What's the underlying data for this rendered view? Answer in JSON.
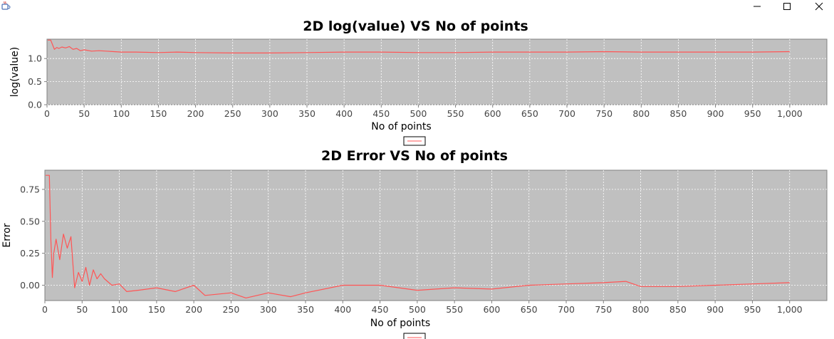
{
  "window": {
    "app_icon": "java-cup-icon",
    "controls": [
      "minimize-icon",
      "maximize-icon",
      "close-icon"
    ]
  },
  "colors": {
    "plot_background": "#c0c0c0",
    "series_line": "#ff5555",
    "gridline": "#ffffff"
  },
  "chart_data": [
    {
      "type": "line",
      "title": "2D log(value) VS No of points",
      "xlabel": "No of points",
      "ylabel": "log(value)",
      "xlim": [
        0,
        1050
      ],
      "ylim": [
        0,
        1.42
      ],
      "xticks": [
        0,
        50,
        100,
        150,
        200,
        250,
        300,
        350,
        400,
        450,
        500,
        550,
        600,
        650,
        700,
        750,
        800,
        850,
        900,
        950,
        1000
      ],
      "xtick_labels": [
        "0",
        "50",
        "100",
        "150",
        "200",
        "250",
        "300",
        "350",
        "400",
        "450",
        "500",
        "550",
        "600",
        "650",
        "700",
        "750",
        "800",
        "850",
        "900",
        "950",
        "1,000"
      ],
      "yticks": [
        0,
        0.5,
        1.0
      ],
      "ytick_labels": [
        "0.0",
        "0.5",
        "1.0"
      ],
      "grid": true,
      "legend": "bottom",
      "series": [
        {
          "name": "",
          "x": [
            1,
            5,
            8,
            10,
            13,
            16,
            20,
            25,
            30,
            35,
            40,
            45,
            50,
            60,
            70,
            80,
            90,
            100,
            120,
            150,
            175,
            200,
            250,
            300,
            350,
            400,
            450,
            500,
            550,
            600,
            650,
            700,
            750,
            800,
            850,
            900,
            950,
            1000
          ],
          "y": [
            1.4,
            1.4,
            1.28,
            1.2,
            1.24,
            1.22,
            1.25,
            1.23,
            1.26,
            1.2,
            1.22,
            1.17,
            1.19,
            1.16,
            1.17,
            1.16,
            1.15,
            1.14,
            1.14,
            1.13,
            1.14,
            1.13,
            1.12,
            1.12,
            1.13,
            1.14,
            1.14,
            1.13,
            1.13,
            1.14,
            1.14,
            1.14,
            1.15,
            1.14,
            1.14,
            1.14,
            1.14,
            1.15
          ]
        }
      ]
    },
    {
      "type": "line",
      "title": "2D Error VS No of points",
      "xlabel": "No of points",
      "ylabel": "Error",
      "xlim": [
        0,
        1050
      ],
      "ylim": [
        -0.12,
        0.9
      ],
      "xticks": [
        0,
        50,
        100,
        150,
        200,
        250,
        300,
        350,
        400,
        450,
        500,
        550,
        600,
        650,
        700,
        750,
        800,
        850,
        900,
        950,
        1000
      ],
      "xtick_labels": [
        "0",
        "50",
        "100",
        "150",
        "200",
        "250",
        "300",
        "350",
        "400",
        "450",
        "500",
        "550",
        "600",
        "650",
        "700",
        "750",
        "800",
        "850",
        "900",
        "950",
        "1,000"
      ],
      "yticks": [
        0,
        0.25,
        0.5,
        0.75
      ],
      "ytick_labels": [
        "0.00",
        "0.25",
        "0.50",
        "0.75"
      ],
      "grid": true,
      "legend": "bottom",
      "series": [
        {
          "name": "",
          "x": [
            1,
            6,
            8,
            10,
            12,
            15,
            20,
            25,
            30,
            35,
            40,
            45,
            50,
            55,
            60,
            65,
            70,
            75,
            80,
            90,
            100,
            110,
            125,
            150,
            175,
            200,
            215,
            250,
            270,
            300,
            330,
            350,
            400,
            450,
            500,
            550,
            600,
            650,
            700,
            750,
            780,
            800,
            850,
            900,
            950,
            1000
          ],
          "y": [
            0.86,
            0.86,
            0.36,
            0.06,
            0.25,
            0.36,
            0.2,
            0.4,
            0.29,
            0.38,
            -0.02,
            0.1,
            0.03,
            0.14,
            0.0,
            0.12,
            0.05,
            0.09,
            0.05,
            0.0,
            0.01,
            -0.05,
            -0.04,
            -0.02,
            -0.05,
            0.0,
            -0.08,
            -0.06,
            -0.1,
            -0.06,
            -0.09,
            -0.06,
            0.0,
            0.0,
            -0.04,
            -0.02,
            -0.03,
            0.0,
            0.01,
            0.02,
            0.03,
            -0.01,
            -0.01,
            0.0,
            0.01,
            0.02
          ]
        }
      ]
    }
  ]
}
